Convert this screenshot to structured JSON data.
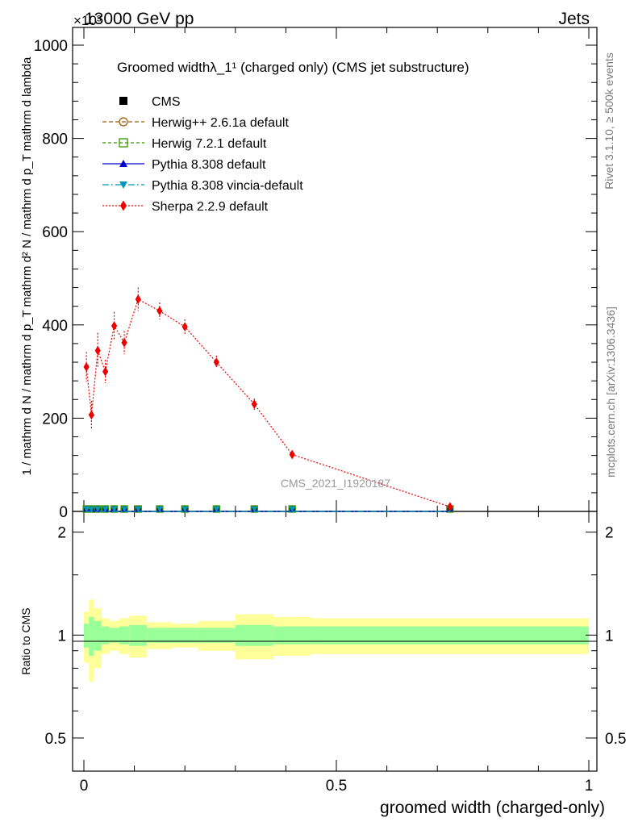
{
  "header": {
    "energy_label": "13000 GeV pp",
    "category_label": "Jets",
    "exponent_label": "×10³"
  },
  "side_labels": {
    "rivet": "Rivet 3.1.10, ≥ 500k events",
    "mcplots": "mcplots.cern.ch [arXiv:1306.3436]"
  },
  "watermark": "CMS_2021_I1920187",
  "chart_data": {
    "type": "line",
    "title": "Groomed widthλ_1¹ (charged only) (CMS jet substructure)",
    "xlabel": "groomed width (charged-only)",
    "ylabel": "1 / mathrm d N / mathrm d p_T mathrm d² N / mathrm d p_T mathrm d lambda",
    "ratio_ylabel": "Ratio to CMS",
    "xlim": [
      0,
      1
    ],
    "ylim": [
      0,
      1000
    ],
    "ratio_ylim": [
      0.4,
      2.3
    ],
    "x_ticks": [
      {
        "value": 0,
        "label": "0"
      },
      {
        "value": 0.5,
        "label": "0.5"
      },
      {
        "value": 1,
        "label": "1"
      }
    ],
    "y_ticks": [
      {
        "value": 0,
        "label": "0"
      },
      {
        "value": 200,
        "label": "200"
      },
      {
        "value": 400,
        "label": "400"
      },
      {
        "value": 600,
        "label": "600"
      },
      {
        "value": 800,
        "label": "800"
      },
      {
        "value": 1000,
        "label": "1000"
      }
    ],
    "ratio_ticks": [
      {
        "value": 0.5,
        "label": "0.5"
      },
      {
        "value": 1,
        "label": "1"
      },
      {
        "value": 2,
        "label": "2"
      }
    ],
    "bin_edges": [
      0,
      0.01,
      0.02,
      0.035,
      0.05,
      0.07,
      0.09,
      0.125,
      0.175,
      0.225,
      0.3,
      0.375,
      0.45,
      1.0
    ],
    "series": [
      {
        "name": "CMS",
        "style": "square",
        "color": "#000000",
        "x": [
          0.005,
          0.015,
          0.0275,
          0.0425,
          0.06,
          0.08,
          0.1075,
          0.15,
          0.2,
          0.2625,
          0.3375,
          0.4125,
          0.725
        ],
        "y": [
          0,
          0,
          0,
          0,
          0,
          0,
          0,
          0,
          0,
          0,
          0,
          0,
          0
        ]
      },
      {
        "name": "Herwig++ 2.6.1a default",
        "style": "circle-open",
        "color": "#a05a00",
        "x": [
          0.005,
          0.015,
          0.0275,
          0.0425,
          0.06,
          0.08,
          0.1075,
          0.15,
          0.2,
          0.2625,
          0.3375,
          0.4125,
          0.725
        ],
        "y": [
          0,
          0,
          0,
          0,
          0,
          0,
          0,
          0,
          0,
          0,
          0,
          0,
          0
        ]
      },
      {
        "name": "Herwig 7.2.1 default",
        "style": "square-open",
        "color": "#339900",
        "x": [
          0.005,
          0.015,
          0.0275,
          0.0425,
          0.06,
          0.08,
          0.1075,
          0.15,
          0.2,
          0.2625,
          0.3375,
          0.4125,
          0.725
        ],
        "y": [
          0,
          0,
          0,
          0,
          0,
          0,
          0,
          0,
          0,
          0,
          0,
          0,
          0
        ]
      },
      {
        "name": "Pythia 8.308 default",
        "style": "triangle-up",
        "color": "#0000cc",
        "x": [
          0.005,
          0.015,
          0.0275,
          0.0425,
          0.06,
          0.08,
          0.1075,
          0.15,
          0.2,
          0.2625,
          0.3375,
          0.4125,
          0.725
        ],
        "y": [
          0,
          0,
          0,
          0,
          0,
          0,
          0,
          0,
          0,
          0,
          0,
          0,
          0
        ]
      },
      {
        "name": "Pythia 8.308 vincia-default",
        "style": "triangle-down",
        "color": "#0099bb",
        "x": [
          0.005,
          0.015,
          0.0275,
          0.0425,
          0.06,
          0.08,
          0.1075,
          0.15,
          0.2,
          0.2625,
          0.3375,
          0.4125,
          0.725
        ],
        "y": [
          0,
          0,
          0,
          0,
          0,
          0,
          0,
          0,
          0,
          0,
          0,
          0,
          0
        ]
      },
      {
        "name": "Sherpa 2.2.9 default",
        "style": "diamond",
        "color": "#ee0000",
        "x": [
          0.005,
          0.015,
          0.0275,
          0.0425,
          0.06,
          0.08,
          0.1075,
          0.15,
          0.2,
          0.2625,
          0.3375,
          0.4125,
          0.725
        ],
        "y": [
          310,
          207,
          345,
          300,
          398,
          362,
          455,
          430,
          396,
          320,
          230,
          122,
          10
        ],
        "err": [
          32,
          30,
          38,
          25,
          30,
          25,
          25,
          18,
          16,
          14,
          12,
          7,
          3
        ]
      }
    ],
    "ratio_bands": {
      "inner_color": "#99ff99",
      "outer_color": "#ffff99",
      "inner": [
        0.08,
        0.13,
        0.1,
        0.06,
        0.05,
        0.06,
        0.07,
        0.05,
        0.05,
        0.05,
        0.07,
        0.06,
        0.06
      ],
      "outer": [
        0.17,
        0.27,
        0.2,
        0.12,
        0.1,
        0.12,
        0.14,
        0.09,
        0.08,
        0.1,
        0.15,
        0.13,
        0.12
      ]
    }
  }
}
